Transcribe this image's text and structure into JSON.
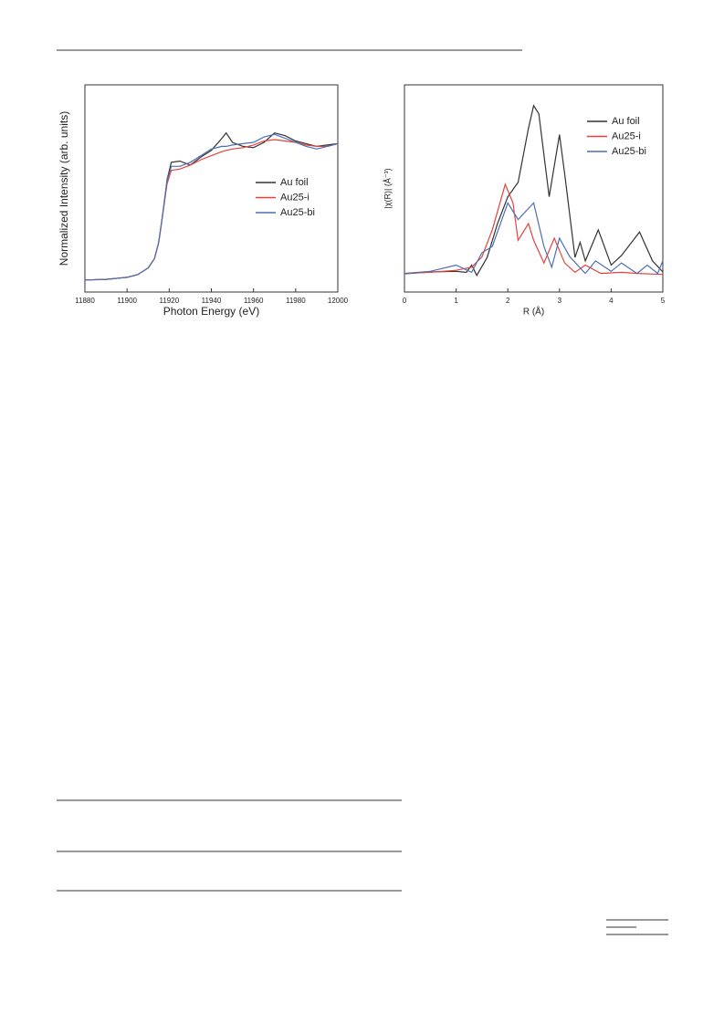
{
  "chart_data": [
    {
      "type": "line",
      "xlabel": "Photon Energy (eV)",
      "ylabel": "Normalized Intensity (arb. units)",
      "xlim": [
        11880,
        12000
      ],
      "xticks": [
        11880,
        11900,
        11920,
        11940,
        11960,
        11980,
        12000
      ],
      "ylim": [
        -0.09,
        1.46
      ],
      "legend": "center-right",
      "x": [
        11880,
        11890,
        11900,
        11905,
        11910,
        11913,
        11915,
        11917,
        11919,
        11921,
        11925,
        11930,
        11935,
        11940,
        11945,
        11947,
        11950,
        11955,
        11960,
        11965,
        11970,
        11975,
        11980,
        11985,
        11990,
        11995,
        12000
      ],
      "series": [
        {
          "name": "Au foil",
          "color": "#333333",
          "values": [
            0,
            0.005,
            0.02,
            0.04,
            0.09,
            0.16,
            0.28,
            0.5,
            0.75,
            0.88,
            0.89,
            0.86,
            0.92,
            0.97,
            1.06,
            1.1,
            1.03,
            1.0,
            0.99,
            1.03,
            1.1,
            1.08,
            1.04,
            1.02,
            1.0,
            1.01,
            1.02
          ]
        },
        {
          "name": "Au25-i",
          "color": "#e8413c",
          "values": [
            0,
            0.005,
            0.02,
            0.04,
            0.09,
            0.16,
            0.28,
            0.5,
            0.72,
            0.82,
            0.83,
            0.86,
            0.9,
            0.93,
            0.96,
            0.97,
            0.98,
            0.99,
            1.01,
            1.04,
            1.05,
            1.04,
            1.03,
            1.01,
            1.0,
            1.0,
            1.02
          ]
        },
        {
          "name": "Au25-bi",
          "color": "#4a6fb5",
          "values": [
            0,
            0.005,
            0.02,
            0.04,
            0.09,
            0.16,
            0.28,
            0.5,
            0.74,
            0.85,
            0.85,
            0.88,
            0.93,
            0.98,
            1.0,
            1.0,
            1.01,
            1.02,
            1.03,
            1.07,
            1.09,
            1.06,
            1.03,
            1.0,
            0.98,
            1.0,
            1.02
          ]
        }
      ]
    },
    {
      "type": "line",
      "xlabel": "R (Å)",
      "ylabel": "|χ(R)| (Å⁻³)",
      "xlim": [
        0,
        5
      ],
      "xticks": [
        0,
        1,
        2,
        3,
        4,
        5
      ],
      "ylim": [
        0,
        10
      ],
      "legend": "upper-right",
      "series": [
        {
          "name": "Au foil",
          "color": "#333333",
          "x": [
            0,
            0.5,
            1.0,
            1.2,
            1.3,
            1.4,
            1.6,
            1.8,
            2.0,
            2.2,
            2.4,
            2.5,
            2.6,
            2.8,
            3.0,
            3.1,
            3.3,
            3.4,
            3.5,
            3.75,
            4.0,
            4.2,
            4.55,
            4.8,
            5.0
          ],
          "values": [
            0.88,
            0.97,
            1.0,
            0.95,
            1.3,
            0.8,
            1.67,
            3.3,
            4.6,
            5.3,
            7.9,
            9.0,
            8.6,
            4.6,
            7.6,
            5.7,
            1.67,
            2.4,
            1.5,
            3.0,
            1.3,
            1.76,
            2.9,
            1.5,
            0.97
          ]
        },
        {
          "name": "Au25-i",
          "color": "#e8413c",
          "x": [
            0,
            0.5,
            1.0,
            1.3,
            1.5,
            1.7,
            1.95,
            2.1,
            2.2,
            2.4,
            2.5,
            2.7,
            2.9,
            3.1,
            3.3,
            3.5,
            3.8,
            4.2,
            4.5,
            5.0
          ],
          "values": [
            0.9,
            0.95,
            1.05,
            1.2,
            1.7,
            3.0,
            5.2,
            4.3,
            2.5,
            3.3,
            2.5,
            1.4,
            2.6,
            1.4,
            0.95,
            1.3,
            0.9,
            0.95,
            0.9,
            0.85
          ]
        },
        {
          "name": "Au25-bi",
          "color": "#4a6fb5",
          "x": [
            0,
            0.5,
            1.0,
            1.3,
            1.5,
            1.7,
            2.0,
            2.2,
            2.5,
            2.7,
            2.85,
            3.0,
            3.2,
            3.5,
            3.7,
            4.0,
            4.2,
            4.5,
            4.7,
            4.9,
            5.0
          ],
          "values": [
            0.9,
            1.0,
            1.3,
            0.95,
            1.9,
            2.2,
            4.3,
            3.5,
            4.3,
            2.2,
            1.2,
            2.6,
            1.7,
            0.9,
            1.5,
            1.0,
            1.4,
            0.9,
            1.3,
            0.9,
            1.5
          ]
        }
      ]
    }
  ]
}
